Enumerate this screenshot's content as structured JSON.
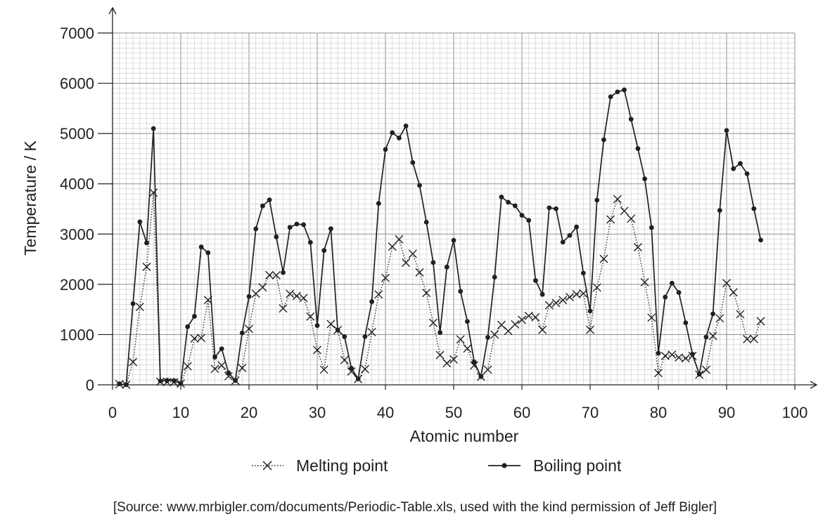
{
  "chart_data": {
    "type": "line",
    "xlabel": "Atomic number",
    "ylabel": "Temperature / K",
    "xlim": [
      0,
      100
    ],
    "ylim": [
      0,
      7000
    ],
    "x_ticks": [
      0,
      10,
      20,
      30,
      40,
      50,
      60,
      70,
      80,
      90,
      100
    ],
    "y_ticks": [
      0,
      1000,
      2000,
      3000,
      4000,
      5000,
      6000,
      7000
    ],
    "grid": true,
    "legend_position": "bottom-center",
    "series": [
      {
        "name": "Melting point",
        "marker": "cross",
        "line_style": "dotted",
        "color": "#231f20",
        "x": [
          1,
          2,
          3,
          4,
          5,
          6,
          7,
          8,
          9,
          10,
          11,
          12,
          13,
          14,
          15,
          16,
          17,
          18,
          19,
          20,
          21,
          22,
          23,
          24,
          25,
          26,
          27,
          28,
          29,
          30,
          31,
          32,
          33,
          34,
          35,
          36,
          37,
          38,
          39,
          40,
          41,
          42,
          43,
          44,
          45,
          46,
          47,
          48,
          49,
          50,
          51,
          52,
          53,
          54,
          55,
          56,
          57,
          58,
          59,
          60,
          61,
          62,
          63,
          64,
          65,
          66,
          67,
          68,
          69,
          70,
          71,
          72,
          73,
          74,
          75,
          76,
          77,
          78,
          79,
          80,
          81,
          82,
          83,
          84,
          85,
          86,
          87,
          88,
          89,
          90,
          91,
          92,
          93,
          94,
          95
        ],
        "y": [
          14,
          1,
          454,
          1551,
          2348,
          3823,
          63,
          55,
          53,
          25,
          371,
          922,
          933,
          1687,
          317,
          388,
          172,
          84,
          336,
          1115,
          1814,
          1941,
          2183,
          2180,
          1519,
          1811,
          1768,
          1728,
          1358,
          693,
          303,
          1211,
          1090,
          494,
          266,
          116,
          312,
          1050,
          1799,
          2128,
          2750,
          2896,
          2430,
          2607,
          2237,
          1828,
          1235,
          594,
          430,
          505,
          904,
          723,
          387,
          161,
          302,
          1000,
          1193,
          1071,
          1204,
          1294,
          1373,
          1345,
          1095,
          1586,
          1629,
          1685,
          1747,
          1802,
          1818,
          1097,
          1936,
          2506,
          3290,
          3695,
          3459,
          3306,
          2739,
          2041,
          1337,
          234,
          577,
          600,
          544,
          527,
          575,
          202,
          300,
          973,
          1323,
          2023,
          1841,
          1405,
          910,
          913,
          1267
        ]
      },
      {
        "name": "Boiling point",
        "marker": "dot",
        "line_style": "solid",
        "color": "#231f20",
        "x": [
          1,
          2,
          3,
          4,
          5,
          6,
          7,
          8,
          9,
          10,
          11,
          12,
          13,
          14,
          15,
          16,
          17,
          18,
          19,
          20,
          21,
          22,
          23,
          24,
          25,
          26,
          27,
          28,
          29,
          30,
          31,
          32,
          33,
          34,
          35,
          36,
          37,
          38,
          39,
          40,
          41,
          42,
          43,
          44,
          45,
          46,
          47,
          48,
          49,
          50,
          51,
          52,
          53,
          54,
          55,
          56,
          57,
          58,
          59,
          60,
          61,
          62,
          63,
          64,
          65,
          66,
          67,
          68,
          69,
          70,
          71,
          72,
          73,
          74,
          75,
          76,
          77,
          78,
          79,
          80,
          81,
          82,
          83,
          84,
          85,
          86,
          87,
          88,
          89,
          90,
          91,
          92,
          93,
          94,
          95
        ],
        "y": [
          20,
          4,
          1615,
          3243,
          2823,
          5100,
          77,
          90,
          85,
          27,
          1156,
          1363,
          2743,
          2628,
          553,
          718,
          239,
          87,
          1032,
          1757,
          3103,
          3560,
          3680,
          2944,
          2235,
          3134,
          3200,
          3186,
          2835,
          1180,
          2673,
          3106,
          1090,
          958,
          332,
          120,
          961,
          1655,
          3609,
          4682,
          5017,
          4912,
          5150,
          4423,
          3968,
          3236,
          2435,
          1040,
          2345,
          2875,
          1860,
          1261,
          457,
          165,
          944,
          2143,
          3737,
          3633,
          3563,
          3373,
          3273,
          2076,
          1800,
          3523,
          3503,
          2840,
          2973,
          3141,
          2223,
          1469,
          3675,
          4876,
          5731,
          5828,
          5869,
          5285,
          4701,
          4098,
          3129,
          630,
          1746,
          2022,
          1837,
          1235,
          610,
          211,
          950,
          1413,
          3471,
          5061,
          4300,
          4404,
          4200,
          3505,
          2880
        ]
      }
    ]
  },
  "source_text": "[Source: www.mrbigler.com/documents/Periodic-Table.xls, used with the kind permission of Jeff Bigler]"
}
